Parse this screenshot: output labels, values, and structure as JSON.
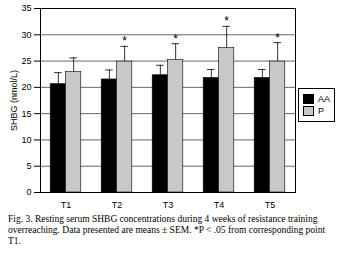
{
  "chart_data": {
    "type": "bar",
    "caption": "Fig. 3. Resting serum SHBG concentrations during 4 weeks of resistance training overreaching. Data presented are means ± SEM. *P < .05 from corresponding point T1.",
    "y_label": "SHBG (nmol/L)",
    "categories": [
      "T1",
      "T2",
      "T3",
      "T4",
      "T5"
    ],
    "series": [
      {
        "name": "AA",
        "color": "#000000",
        "values": [
          20.6,
          21.5,
          22.3,
          21.8,
          21.8
        ],
        "errors": [
          2.2,
          1.8,
          1.9,
          1.6,
          1.6
        ]
      },
      {
        "name": "P",
        "color": "#c8c8c8",
        "values": [
          22.9,
          24.9,
          25.2,
          27.5,
          24.9
        ],
        "errors": [
          2.7,
          2.9,
          3.1,
          4.1,
          3.6
        ]
      }
    ],
    "annotations": [
      {
        "text": "*",
        "category": "T2",
        "series": "P"
      },
      {
        "text": "*",
        "category": "T3",
        "series": "P"
      },
      {
        "text": "*",
        "category": "T4",
        "series": "P"
      },
      {
        "text": "*",
        "category": "T5",
        "series": "P"
      }
    ],
    "ylim": [
      0,
      35
    ],
    "yticks": [
      0,
      5,
      10,
      15,
      20,
      25,
      30,
      35
    ],
    "grid": true,
    "legend": "right"
  }
}
